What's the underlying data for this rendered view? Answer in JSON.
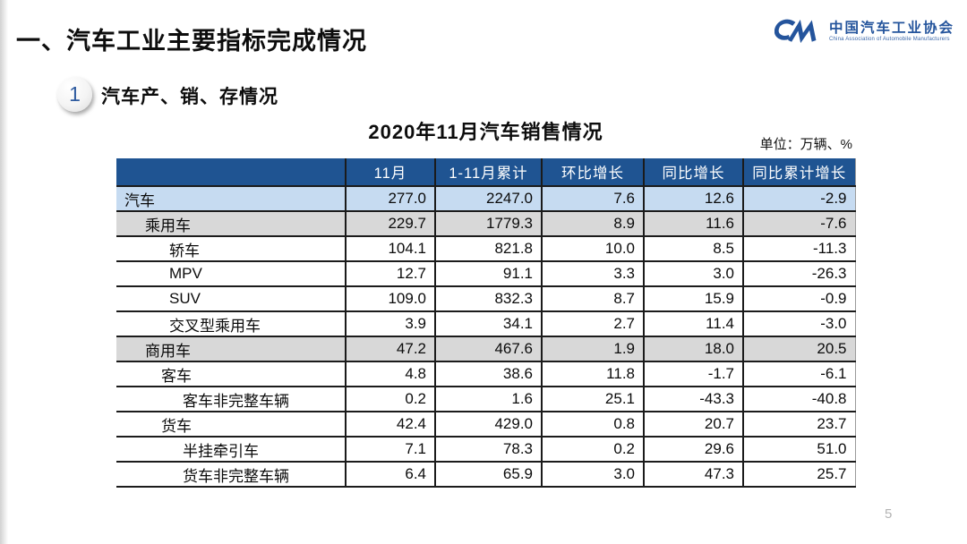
{
  "page": {
    "title": "一、汽车工业主要指标完成情况",
    "page_number": "5"
  },
  "logo": {
    "icon": "cm-monogram-icon",
    "name_cn": "中国汽车工业协会",
    "name_en": "China Association of Automobile Manufacturers",
    "color": "#24549C"
  },
  "section": {
    "badge": "1",
    "title": "汽车产、销、存情况"
  },
  "table": {
    "title": "2020年11月汽车销售情况",
    "unit_label": "单位：万辆、%",
    "headers": [
      "",
      "11月",
      "1-11月累计",
      "环比增长",
      "同比增长",
      "同比累计增长"
    ],
    "rows": [
      {
        "label": "汽车",
        "indent": 0,
        "style": "blue",
        "values": [
          "277.0",
          "2247.0",
          "7.6",
          "12.6",
          "-2.9"
        ]
      },
      {
        "label": "乘用车",
        "indent": 1,
        "style": "gray",
        "values": [
          "229.7",
          "1779.3",
          "8.9",
          "11.6",
          "-7.6"
        ]
      },
      {
        "label": "轿车",
        "indent": 3,
        "style": "white",
        "values": [
          "104.1",
          "821.8",
          "10.0",
          "8.5",
          "-11.3"
        ]
      },
      {
        "label": "MPV",
        "indent": 3,
        "style": "white",
        "values": [
          "12.7",
          "91.1",
          "3.3",
          "3.0",
          "-26.3"
        ]
      },
      {
        "label": "SUV",
        "indent": 3,
        "style": "white",
        "values": [
          "109.0",
          "832.3",
          "8.7",
          "15.9",
          "-0.9"
        ]
      },
      {
        "label": "交叉型乘用车",
        "indent": 3,
        "style": "white",
        "values": [
          "3.9",
          "34.1",
          "2.7",
          "11.4",
          "-3.0"
        ]
      },
      {
        "label": "商用车",
        "indent": 1,
        "style": "gray",
        "values": [
          "47.2",
          "467.6",
          "1.9",
          "18.0",
          "20.5"
        ]
      },
      {
        "label": "客车",
        "indent": 2,
        "style": "white",
        "values": [
          "4.8",
          "38.6",
          "11.8",
          "-1.7",
          "-6.1"
        ]
      },
      {
        "label": "客车非完整车辆",
        "indent": 4,
        "style": "white",
        "values": [
          "0.2",
          "1.6",
          "25.1",
          "-43.3",
          "-40.8"
        ]
      },
      {
        "label": "货车",
        "indent": 2,
        "style": "white",
        "values": [
          "42.4",
          "429.0",
          "0.8",
          "20.7",
          "23.7"
        ]
      },
      {
        "label": "半挂牵引车",
        "indent": 4,
        "style": "white",
        "values": [
          "7.1",
          "78.3",
          "0.2",
          "29.6",
          "51.0"
        ]
      },
      {
        "label": "货车非完整车辆",
        "indent": 4,
        "style": "white",
        "values": [
          "6.4",
          "65.9",
          "3.0",
          "47.3",
          "25.7"
        ]
      }
    ]
  },
  "colors": {
    "header_bg": "#1F5492",
    "header_text": "#FFFFFF",
    "row_highlight_blue": "#C6DBF1",
    "row_highlight_gray": "#D8D8D8",
    "table_border": "#1B1B1B",
    "accent_blue": "#24549C",
    "badge_number_blue": "#2E5B9F"
  }
}
